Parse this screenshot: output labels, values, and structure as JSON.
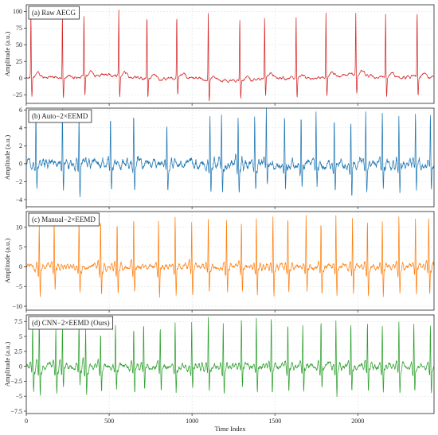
{
  "chart_data": {
    "type": "line",
    "xlabel": "Time Index",
    "xlim": [
      0,
      2460
    ],
    "xticks": [
      0,
      500,
      1000,
      1500,
      2000
    ],
    "grid": true,
    "panels": [
      {
        "label": "(a) Raw AECG",
        "ylabel": "Amplitude (a.u.)",
        "ylim": [
          -38,
          110
        ],
        "yticks": [
          -25,
          0,
          25,
          50,
          75,
          100
        ],
        "color": "#d62728",
        "beats": [
          28,
          218,
          348,
          558,
          728,
          908,
          1098,
          1288,
          1438,
          1628,
          1808,
          1988,
          2168,
          2358
        ],
        "peaks": [
          100,
          98,
          97,
          99,
          100,
          97,
          102,
          94,
          93,
          93,
          96,
          93,
          96,
          100
        ],
        "troughs": [
          -28,
          -30,
          -27,
          -30,
          -29,
          -27,
          -32,
          -28,
          -27,
          -27,
          -29,
          -28,
          -28,
          -29
        ],
        "noise_level": 2.5,
        "baseline_wander": 3
      },
      {
        "label": "(b) Auto−2×EEMD",
        "ylabel": "Amplitude (a.u.)",
        "ylim": [
          -4.8,
          6.2
        ],
        "yticks": [
          -4,
          -2,
          0,
          2,
          4,
          6
        ],
        "color": "#1f77b4",
        "beats": [
          58,
          218,
          318,
          508,
          648,
          848,
          1108,
          1178,
          1278,
          1378,
          1448,
          1558,
          1658,
          1748,
          1858,
          1958,
          2048,
          2148,
          2248,
          2348,
          2438
        ],
        "peaks": [
          5.7,
          5.8,
          5.6,
          5.7,
          5.8,
          5.2,
          5.6,
          5.8,
          5.7,
          5.5,
          5.8,
          5.6,
          5.5,
          5.4,
          5.7,
          5.4,
          5.6,
          5.5,
          5.6,
          5.7,
          5.3
        ],
        "troughs": [
          -3.6,
          -4.3,
          -4.4,
          -3.7,
          -3.6,
          -3.0,
          -4.3,
          -3.5,
          -3.9,
          -3.7,
          -3.6,
          -3.9,
          -3.8,
          -3.6,
          -3.7,
          -4.1,
          -3.8,
          -3.9,
          -4.0,
          -3.8,
          -3.5
        ],
        "noise_level": 0.6,
        "baseline_wander": 0
      },
      {
        "label": "(c) Manual−2×EEMD",
        "ylabel": "Amplitude (a.u.)",
        "ylim": [
          -11,
          14
        ],
        "yticks": [
          -10,
          -5,
          0,
          5,
          10
        ],
        "color": "#ff7f0e",
        "beats": [
          78,
          168,
          318,
          448,
          548,
          648,
          798,
          898,
          998,
          1098,
          1208,
          1298,
          1388,
          1488,
          1578,
          1688,
          1778,
          1868,
          1968,
          2058,
          2148,
          2248,
          2348,
          2428
        ],
        "peaks": [
          11.8,
          11.5,
          12.3,
          12.5,
          12.0,
          13.3,
          12.5,
          12.4,
          11.9,
          12.4,
          12.1,
          11.5,
          12.1,
          12.3,
          12.8,
          12.5,
          12.0,
          12.9,
          12.6,
          12.5,
          12.0,
          12.7,
          12.7,
          12.3
        ],
        "troughs": [
          -9.3,
          -8.4,
          -8.8,
          -9.4,
          -8.6,
          -8.8,
          -9.6,
          -9.5,
          -8.7,
          -8.2,
          -8.7,
          -8.4,
          -9.4,
          -9.1,
          -9.3,
          -8.5,
          -8.8,
          -9.5,
          -9.1,
          -9.2,
          -9.4,
          -9.2,
          -9.2,
          -9.5
        ],
        "noise_level": 0.8,
        "baseline_wander": 0
      },
      {
        "label": "(d) CNN−2×EEMD (Ours)",
        "ylabel": "Amplitude (a.u.)",
        "ylim": [
          -7.9,
          8.6
        ],
        "yticks": [
          -7.5,
          -5.0,
          -2.5,
          0.0,
          2.5,
          5.0,
          7.5
        ],
        "color": "#2ca02c",
        "beats": [
          38,
          78,
          178,
          218,
          318,
          358,
          448,
          538,
          648,
          708,
          808,
          898,
          998,
          1098,
          1188,
          1298,
          1388,
          1478,
          1578,
          1668,
          1778,
          1868,
          1958,
          2058,
          2148,
          2248,
          2338,
          2438
        ],
        "peaks": [
          6.7,
          8.2,
          7.0,
          6.8,
          7.3,
          6.5,
          6.3,
          6.9,
          6.9,
          7.6,
          6.8,
          7.2,
          7.4,
          8.1,
          7.5,
          7.8,
          8.0,
          8.3,
          7.6,
          7.4,
          7.6,
          8.0,
          7.8,
          7.7,
          7.1,
          7.7,
          7.9,
          7.3
        ],
        "troughs": [
          -5.2,
          -6.8,
          -5.5,
          -4.9,
          -4.3,
          -5.8,
          -4.8,
          -4.9,
          -5.6,
          -5.2,
          -5.3,
          -5.7,
          -5.4,
          -5.2,
          -5.8,
          -5.0,
          -5.5,
          -5.6,
          -5.6,
          -5.4,
          -5.5,
          -5.7,
          -5.2,
          -5.7,
          -5.5,
          -5.6,
          -5.3,
          -5.3
        ],
        "noise_level": 0.6,
        "baseline_wander": 0
      }
    ]
  }
}
